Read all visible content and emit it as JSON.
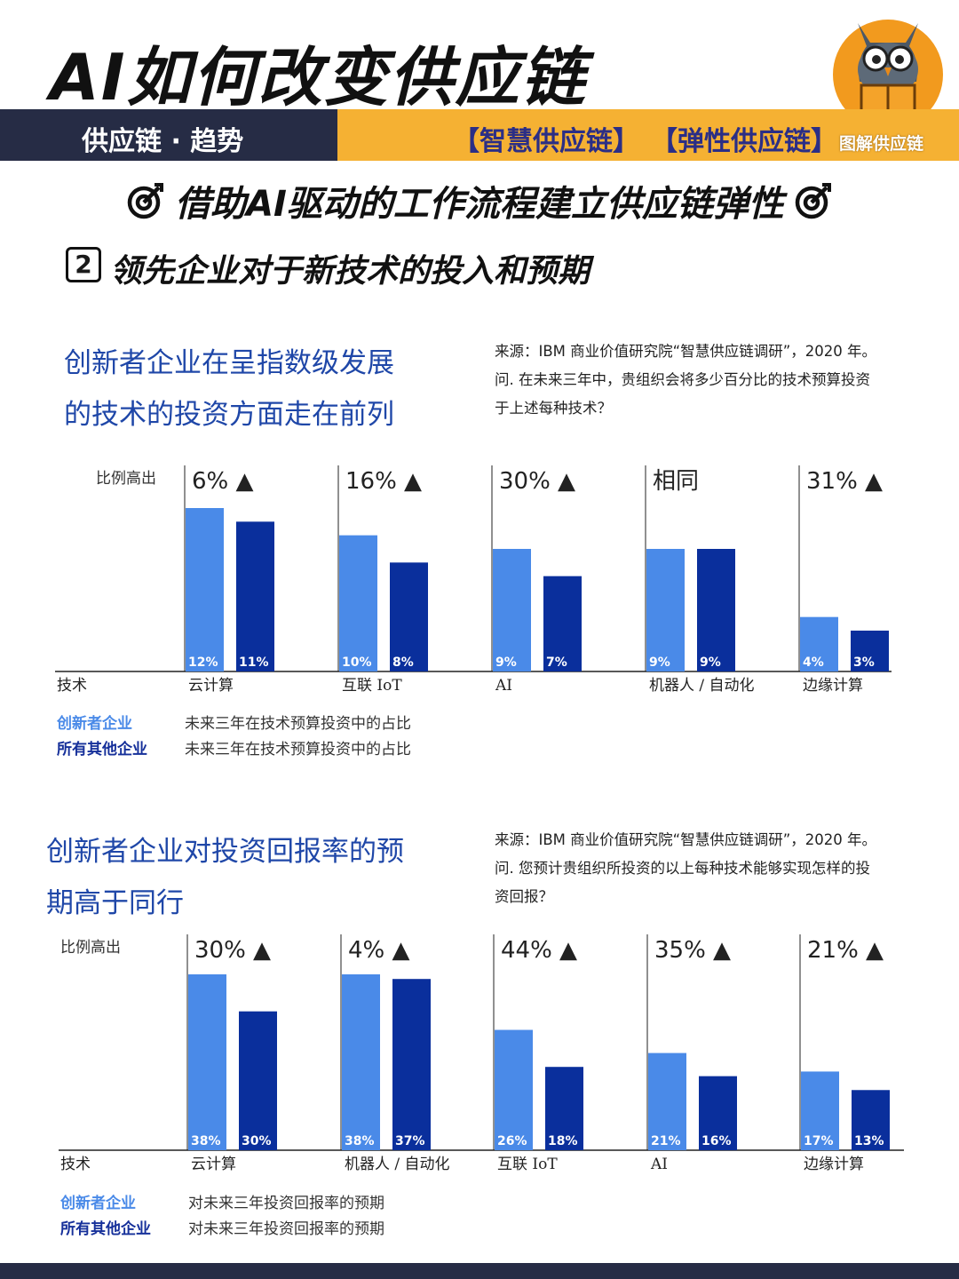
{
  "header": {
    "title": "AI如何改变供应链",
    "banner_left": "供应链 · 趋势",
    "tag1": "【智慧供应链】",
    "tag2": "【弹性供应链】",
    "brand": "图解供应链"
  },
  "subtitle": "借助AI驱动的工作流程建立供应链弹性",
  "section": {
    "number": "2",
    "title": "领先企业对于新技术的投入和预期"
  },
  "colors": {
    "innovator": "#4a8ae8",
    "others": "#0a2f9c",
    "heading": "#1f47a8",
    "banner_dark": "#262c45",
    "banner_gold": "#f5b133"
  },
  "chart1": {
    "heading_line1": "创新者企业在呈指数级发展",
    "heading_line2": "的技术的投资方面走在前列",
    "source_line1": "来源：IBM 商业价值研究院“智慧供应链调研”，2020 年。",
    "source_line2": "问. 在未来三年中，贵组织会将多少百分比的技术预算投资",
    "source_line3": "于上述每种技术？",
    "legend": [
      {
        "label": "创新者企业",
        "desc": "未来三年在技术预算投资中的占比"
      },
      {
        "label": "所有其他企业",
        "desc": "未来三年在技术预算投资中的占比"
      }
    ]
  },
  "chart2": {
    "heading_line1": "创新者企业对投资回报率的预",
    "heading_line2": "期高于同行",
    "source_line1": "来源：IBM 商业价值研究院“智慧供应链调研”，2020 年。",
    "source_line2": "问. 您预计贵组织所投资的以上每种技术能够实现怎样的投",
    "source_line3": "资回报？",
    "legend": [
      {
        "label": "创新者企业",
        "desc": "对未来三年投资回报率的预期"
      },
      {
        "label": "所有其他企业",
        "desc": "对未来三年投资回报率的预期"
      }
    ]
  },
  "chart_data": [
    {
      "type": "bar",
      "ratio_label": "比例高出",
      "axis_label": "技术",
      "categories": [
        "云计算",
        "互联 IoT",
        "AI",
        "机器人 / 自动化",
        "边缘计算"
      ],
      "differences": [
        "6% ▲",
        "16% ▲",
        "30% ▲",
        "相同",
        "31% ▲"
      ],
      "series": [
        {
          "name": "创新者企业",
          "values": [
            12,
            10,
            9,
            9,
            4
          ],
          "labels": [
            "12%",
            "10%",
            "9%",
            "9%",
            "4%"
          ]
        },
        {
          "name": "所有其他企业",
          "values": [
            11,
            8,
            7,
            9,
            3
          ],
          "labels": [
            "11%",
            "8%",
            "7%",
            "9%",
            "3%"
          ]
        }
      ]
    },
    {
      "type": "bar",
      "ratio_label": "比例高出",
      "axis_label": "技术",
      "categories": [
        "云计算",
        "机器人 / 自动化",
        "互联 IoT",
        "AI",
        "边缘计算"
      ],
      "differences": [
        "30% ▲",
        "4% ▲",
        "44% ▲",
        "35% ▲",
        "21% ▲"
      ],
      "series": [
        {
          "name": "创新者企业",
          "values": [
            38,
            38,
            26,
            21,
            17
          ],
          "labels": [
            "38%",
            "38%",
            "26%",
            "21%",
            "17%"
          ]
        },
        {
          "name": "所有其他企业",
          "values": [
            30,
            37,
            18,
            16,
            13
          ],
          "labels": [
            "30%",
            "37%",
            "18%",
            "16%",
            "13%"
          ]
        }
      ]
    }
  ]
}
